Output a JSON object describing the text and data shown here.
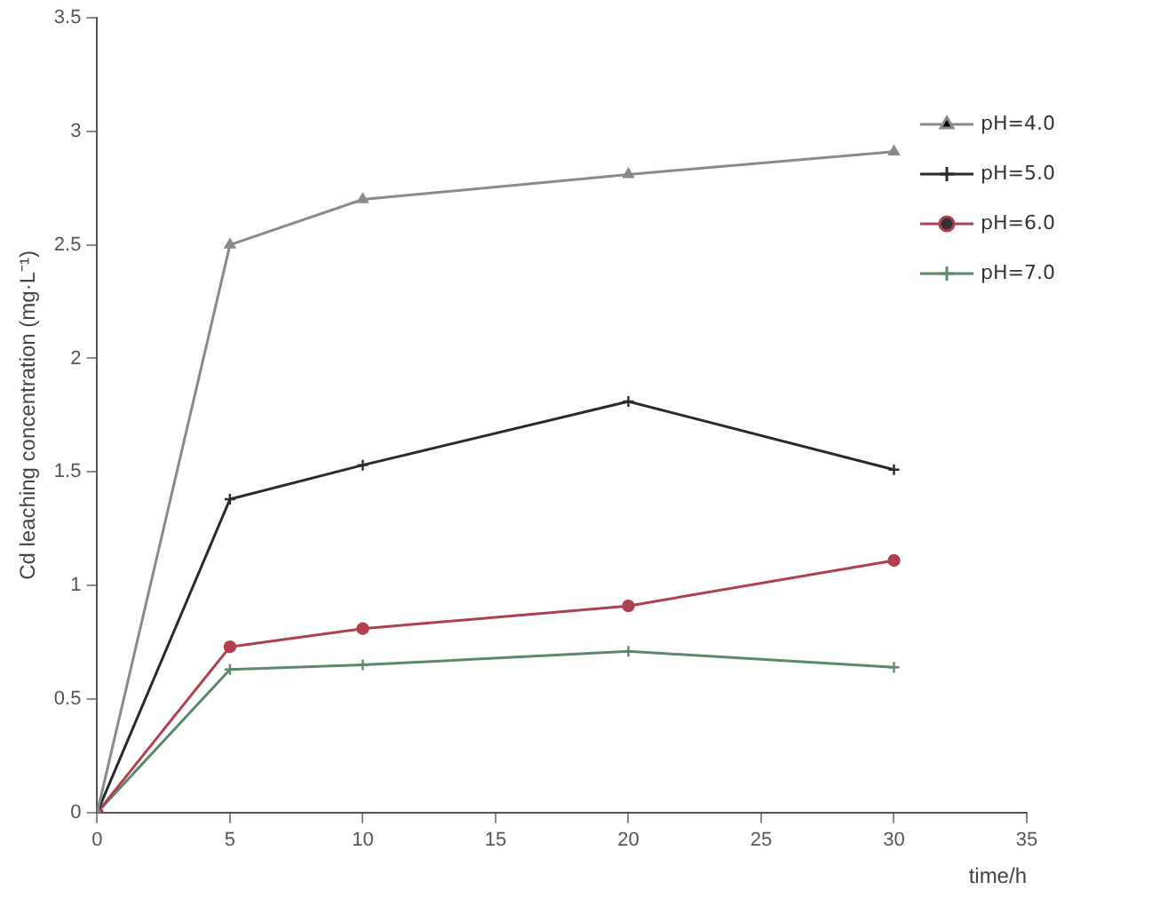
{
  "chart_data": {
    "type": "line",
    "xlabel": "time/h",
    "ylabel": "Cd leaching concentration (mg·L⁻¹)",
    "x": [
      0,
      5,
      10,
      20,
      30
    ],
    "series": [
      {
        "name": "pH=4.0",
        "color": "#8a8a8a",
        "marker": "triangle",
        "values": [
          0,
          2.5,
          2.7,
          2.81,
          2.91
        ]
      },
      {
        "name": "pH=5.0",
        "color": "#2a2a2a",
        "marker": "cross",
        "values": [
          0,
          1.38,
          1.53,
          1.81,
          1.51
        ]
      },
      {
        "name": "pH=6.0",
        "color": "#b04050",
        "marker": "circle",
        "values": [
          0,
          0.73,
          0.81,
          0.91,
          1.11
        ]
      },
      {
        "name": "pH=7.0",
        "color": "#5a8a6a",
        "marker": "cross",
        "values": [
          0,
          0.63,
          0.65,
          0.71,
          0.64
        ]
      }
    ],
    "xlim": [
      0,
      35
    ],
    "xticks": [
      0,
      5,
      10,
      15,
      20,
      25,
      30,
      35
    ],
    "ylim": [
      0,
      3.5
    ],
    "yticks": [
      0,
      0.5,
      1,
      1.5,
      2,
      2.5,
      3,
      3.5
    ],
    "grid": false,
    "legend": "top right",
    "line_style": "solid"
  }
}
